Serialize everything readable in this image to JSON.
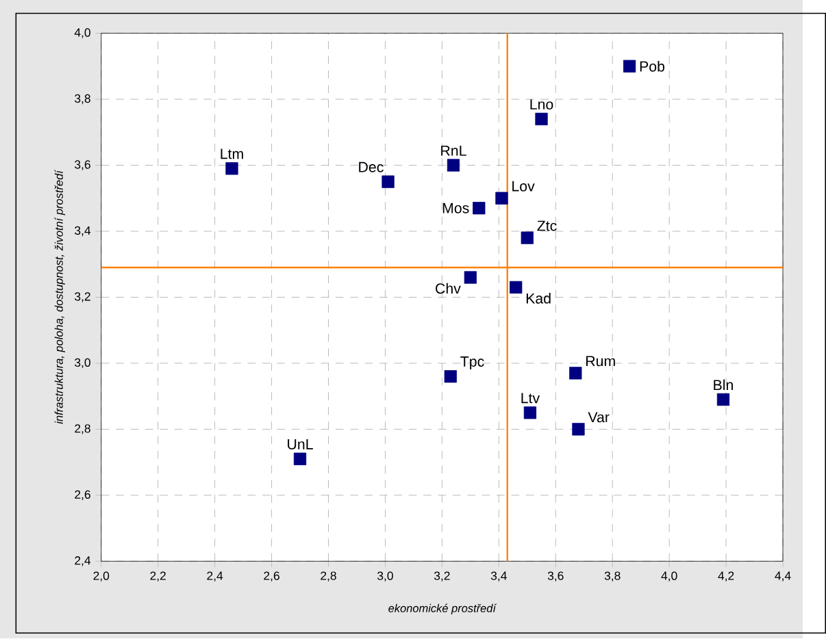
{
  "chart_data": {
    "type": "scatter",
    "xlabel": "ekonomické prostředí",
    "ylabel": "infrastruktura, poloha, dostupnost, životní prostředí",
    "xlim": [
      2.0,
      4.4
    ],
    "ylim": [
      2.4,
      4.0
    ],
    "xticks": [
      {
        "value": 2.0,
        "label": "2,0"
      },
      {
        "value": 2.2,
        "label": "2,2"
      },
      {
        "value": 2.4,
        "label": "2,4"
      },
      {
        "value": 2.6,
        "label": "2,6"
      },
      {
        "value": 2.8,
        "label": "2,8"
      },
      {
        "value": 3.0,
        "label": "3,0"
      },
      {
        "value": 3.2,
        "label": "3,2"
      },
      {
        "value": 3.4,
        "label": "3,4"
      },
      {
        "value": 3.6,
        "label": "3,6"
      },
      {
        "value": 3.8,
        "label": "3,8"
      },
      {
        "value": 4.0,
        "label": "4,0"
      },
      {
        "value": 4.2,
        "label": "4,2"
      },
      {
        "value": 4.4,
        "label": "4,4"
      }
    ],
    "yticks": [
      {
        "value": 2.4,
        "label": "2,4"
      },
      {
        "value": 2.6,
        "label": "2,6"
      },
      {
        "value": 2.8,
        "label": "2,8"
      },
      {
        "value": 3.0,
        "label": "3,0"
      },
      {
        "value": 3.2,
        "label": "3,2"
      },
      {
        "value": 3.4,
        "label": "3,4"
      },
      {
        "value": 3.6,
        "label": "3,6"
      },
      {
        "value": 3.8,
        "label": "3,8"
      },
      {
        "value": 4.0,
        "label": "4,0"
      }
    ],
    "grid": true,
    "marker": "square",
    "ref_lines": [
      {
        "axis": "x",
        "value": 3.43,
        "color": "#ff8000"
      },
      {
        "axis": "y",
        "value": 3.29,
        "color": "#ff8000"
      }
    ],
    "series": [
      {
        "name": "Ltm",
        "color": "#000080",
        "x": [
          2.46
        ],
        "values": [
          3.59
        ]
      },
      {
        "name": "Dec",
        "color": "#000080",
        "x": [
          3.01
        ],
        "values": [
          3.55
        ]
      },
      {
        "name": "RnL",
        "color": "#000080",
        "x": [
          3.24
        ],
        "values": [
          3.6
        ]
      },
      {
        "name": "Lno",
        "color": "#000080",
        "x": [
          3.55
        ],
        "values": [
          3.74
        ]
      },
      {
        "name": "Pob",
        "color": "#000080",
        "x": [
          3.86
        ],
        "values": [
          3.9
        ]
      },
      {
        "name": "Lov",
        "color": "#000080",
        "x": [
          3.41
        ],
        "values": [
          3.5
        ]
      },
      {
        "name": "Mos",
        "color": "#000080",
        "x": [
          3.33
        ],
        "values": [
          3.47
        ]
      },
      {
        "name": "Ztc",
        "color": "#000080",
        "x": [
          3.5
        ],
        "values": [
          3.38
        ]
      },
      {
        "name": "Chv",
        "color": "#000080",
        "x": [
          3.3
        ],
        "values": [
          3.26
        ]
      },
      {
        "name": "Kad",
        "color": "#000080",
        "x": [
          3.46
        ],
        "values": [
          3.23
        ]
      },
      {
        "name": "Tpc",
        "color": "#000080",
        "x": [
          3.23
        ],
        "values": [
          2.96
        ]
      },
      {
        "name": "Rum",
        "color": "#000080",
        "x": [
          3.67
        ],
        "values": [
          2.97
        ]
      },
      {
        "name": "Ltv",
        "color": "#000080",
        "x": [
          3.51
        ],
        "values": [
          2.85
        ]
      },
      {
        "name": "Var",
        "color": "#000080",
        "x": [
          3.68
        ],
        "values": [
          2.8
        ]
      },
      {
        "name": "Bln",
        "color": "#000080",
        "x": [
          4.19
        ],
        "values": [
          2.89
        ]
      },
      {
        "name": "UnL",
        "color": "#000080",
        "x": [
          2.7
        ],
        "values": [
          2.71
        ]
      }
    ]
  }
}
